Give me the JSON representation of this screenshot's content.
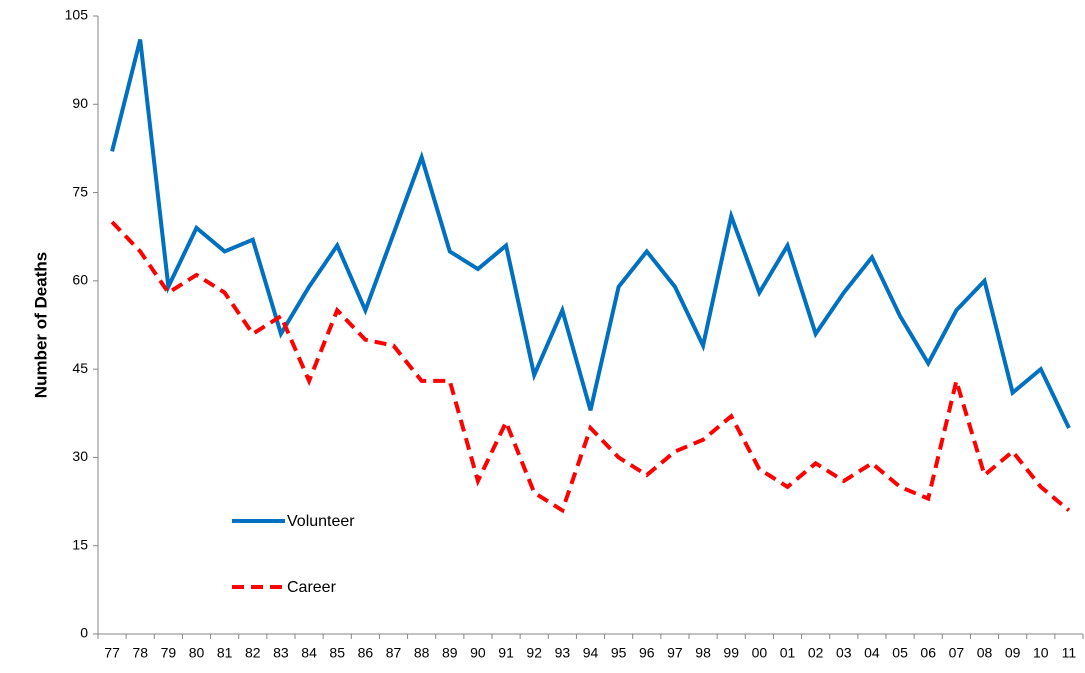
{
  "chart_data": {
    "type": "line",
    "y_label": "Number of Deaths",
    "categories": [
      "77",
      "78",
      "79",
      "80",
      "81",
      "82",
      "83",
      "84",
      "85",
      "86",
      "87",
      "88",
      "89",
      "90",
      "91",
      "92",
      "93",
      "94",
      "95",
      "96",
      "97",
      "98",
      "99",
      "00",
      "01",
      "02",
      "03",
      "04",
      "05",
      "06",
      "07",
      "08",
      "09",
      "10",
      "11"
    ],
    "series": [
      {
        "name": "Volunteer",
        "color": "#0070c0",
        "line_style": "solid",
        "values": [
          82,
          101,
          59,
          69,
          65,
          67,
          51,
          59,
          66,
          55,
          68,
          81,
          65,
          62,
          66,
          44,
          55,
          38,
          59,
          65,
          59,
          49,
          71,
          58,
          66,
          51,
          58,
          64,
          54,
          46,
          55,
          60,
          41,
          45,
          35
        ]
      },
      {
        "name": "Career",
        "color": "#ff0000",
        "line_style": "dashed",
        "values": [
          70,
          65,
          58,
          61,
          58,
          51,
          54,
          43,
          55,
          50,
          49,
          43,
          43,
          26,
          36,
          24,
          21,
          35,
          30,
          27,
          31,
          33,
          37,
          28,
          25,
          29,
          26,
          29,
          25,
          23,
          43,
          27,
          31,
          25,
          21
        ]
      }
    ],
    "ylim": [
      0,
      105
    ],
    "yticks": [
      0,
      15,
      30,
      45,
      60,
      75,
      90,
      105
    ],
    "grid": false,
    "legend": "lower left"
  }
}
